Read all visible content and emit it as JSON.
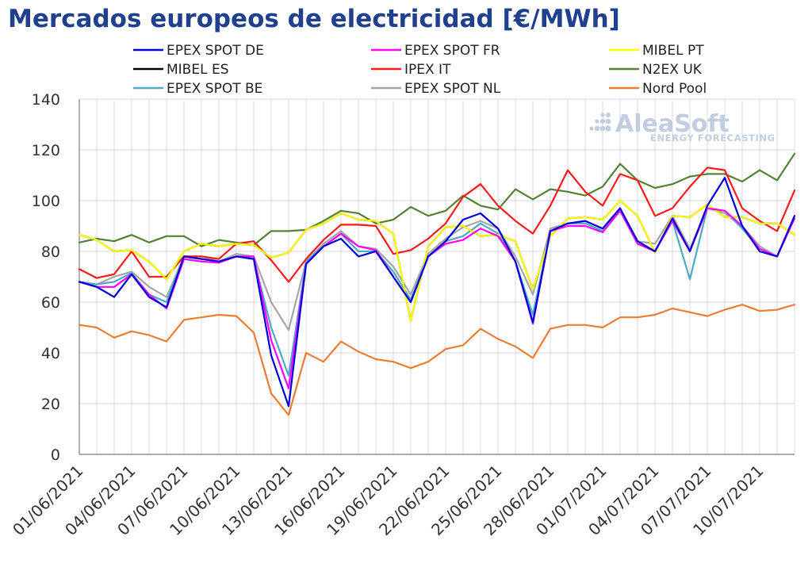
{
  "title": "Mercados europeos de electricidad [€/MWh]",
  "logo": {
    "name": "AleaSoft",
    "tagline": "ENERGY FORECASTING"
  },
  "chart_data": {
    "type": "line",
    "title": "Mercados europeos de electricidad [€/MWh]",
    "xlabel": "",
    "ylabel": "",
    "ylim": [
      0,
      140
    ],
    "y_ticks": [
      0,
      20,
      40,
      60,
      80,
      100,
      120,
      140
    ],
    "grid": true,
    "legend_position": "top",
    "x": [
      "01/06/2021",
      "02/06/2021",
      "03/06/2021",
      "04/06/2021",
      "05/06/2021",
      "06/06/2021",
      "07/06/2021",
      "08/06/2021",
      "09/06/2021",
      "10/06/2021",
      "11/06/2021",
      "12/06/2021",
      "13/06/2021",
      "14/06/2021",
      "15/06/2021",
      "16/06/2021",
      "17/06/2021",
      "18/06/2021",
      "19/06/2021",
      "20/06/2021",
      "21/06/2021",
      "22/06/2021",
      "23/06/2021",
      "24/06/2021",
      "25/06/2021",
      "26/06/2021",
      "27/06/2021",
      "28/06/2021",
      "29/06/2021",
      "30/06/2021",
      "01/07/2021",
      "02/07/2021",
      "03/07/2021",
      "04/07/2021",
      "05/07/2021",
      "06/07/2021",
      "07/07/2021",
      "08/07/2021",
      "09/07/2021",
      "10/07/2021",
      "11/07/2021",
      "12/07/2021"
    ],
    "x_tick_labels": [
      "01/06/2021",
      "04/06/2021",
      "07/06/2021",
      "10/06/2021",
      "13/06/2021",
      "16/06/2021",
      "19/06/2021",
      "22/06/2021",
      "25/06/2021",
      "28/06/2021",
      "01/07/2021",
      "04/07/2021",
      "07/07/2021",
      "10/07/2021"
    ],
    "series": [
      {
        "name": "EPEX SPOT DE",
        "color": "#0000dd",
        "values": [
          68,
          66,
          62,
          71,
          62,
          58,
          78,
          77,
          76,
          78,
          77,
          39,
          19,
          75,
          82,
          85,
          78,
          80,
          70,
          60,
          78,
          84,
          92.5,
          95,
          89,
          76,
          52,
          88,
          91,
          92,
          89,
          97,
          84,
          80,
          93,
          80,
          98,
          109,
          90,
          80,
          78,
          94
        ]
      },
      {
        "name": "EPEX SPOT FR",
        "color": "#ff00ff",
        "values": [
          68,
          66,
          66,
          71,
          63,
          57.5,
          77,
          76,
          75.5,
          78,
          78,
          45,
          26,
          75,
          82,
          87,
          82,
          80.5,
          70,
          60,
          78,
          83,
          84.5,
          89,
          86,
          76,
          51.5,
          88,
          90,
          90,
          87.5,
          96,
          83,
          80,
          92,
          80,
          97,
          96,
          90,
          81,
          78,
          93
        ]
      },
      {
        "name": "MIBEL PT",
        "color": "#ffff00",
        "values": [
          86.5,
          84.5,
          80,
          80.5,
          76,
          69,
          80,
          83,
          82,
          83,
          82.5,
          77.5,
          79.5,
          88.5,
          91,
          95,
          92.5,
          92,
          87,
          52.5,
          82,
          89.5,
          90,
          86,
          86.5,
          84,
          65,
          86,
          93,
          93.5,
          92.5,
          100,
          94,
          79.5,
          94,
          93.5,
          98.5,
          93.5,
          93.5,
          91,
          91,
          86.5
        ]
      },
      {
        "name": "MIBEL ES",
        "color": "#000000",
        "values": [
          86.5,
          84.5,
          80,
          80.5,
          76,
          69,
          80,
          83,
          82,
          83,
          82.5,
          77.5,
          79.5,
          88.5,
          91,
          95,
          92.5,
          92,
          87,
          52.5,
          82,
          89.5,
          90,
          86,
          86.5,
          84,
          65,
          86,
          93,
          93.5,
          92.5,
          100,
          94,
          79.5,
          94,
          93.5,
          98.5,
          93.5,
          93.5,
          91,
          91,
          86.5
        ]
      },
      {
        "name": "IPEX IT",
        "color": "#ff1a1a",
        "values": [
          73,
          69.5,
          71,
          80,
          70,
          70,
          78,
          78,
          77,
          83,
          84,
          76.5,
          68,
          77,
          84.5,
          90.5,
          90.5,
          90,
          79,
          80.5,
          85,
          91,
          101.5,
          106.5,
          98,
          92,
          87,
          98,
          112,
          103.5,
          98,
          110.5,
          108,
          94,
          97,
          105.5,
          113,
          112,
          97,
          92,
          88,
          104
        ]
      },
      {
        "name": "N2EX UK",
        "color": "#548235",
        "values": [
          83.5,
          85,
          84,
          86.5,
          83.5,
          86,
          86,
          82,
          84.5,
          83.5,
          82.5,
          88,
          88,
          88.5,
          92,
          96,
          95,
          91,
          92.5,
          97.5,
          94,
          96,
          102,
          98,
          96.5,
          104.5,
          100.5,
          104.5,
          103.5,
          102,
          105.5,
          114.5,
          108,
          105,
          106.5,
          109.5,
          110.5,
          110.5,
          107.5,
          112,
          108,
          118.5
        ]
      },
      {
        "name": "EPEX SPOT BE",
        "color": "#4bacc6",
        "values": [
          68,
          67,
          68,
          71.5,
          63,
          60,
          78,
          77,
          76,
          78,
          77,
          50,
          31,
          76,
          82,
          87,
          80,
          80,
          72,
          61,
          78,
          84,
          86,
          91,
          87,
          76,
          55,
          88,
          91,
          91,
          88,
          96,
          83,
          80,
          92,
          69,
          97,
          96,
          89,
          81,
          78,
          93
        ]
      },
      {
        "name": "EPEX SPOT NL",
        "color": "#a6a6a6",
        "values": [
          68,
          67,
          70,
          72,
          66,
          62,
          78,
          78,
          76,
          79,
          78,
          60,
          49,
          76,
          83,
          88,
          82,
          81,
          74,
          63,
          79,
          85,
          89.5,
          92,
          89,
          78,
          63,
          89,
          91,
          92,
          89,
          97,
          84,
          83,
          94,
          81,
          97,
          95,
          90,
          82,
          78,
          94
        ]
      },
      {
        "name": "Nord Pool",
        "color": "#ed7d31",
        "values": [
          51,
          50,
          46,
          48.5,
          47,
          44.5,
          53,
          54,
          55,
          54.5,
          48,
          24,
          15.5,
          40,
          36.5,
          44.5,
          40.5,
          37.5,
          36.5,
          34,
          36.5,
          41.5,
          43,
          49.5,
          45.5,
          42.5,
          38,
          49.5,
          51,
          51,
          50,
          54,
          54,
          55,
          57.5,
          56,
          54.5,
          57,
          59,
          56.5,
          57,
          59
        ]
      }
    ]
  }
}
